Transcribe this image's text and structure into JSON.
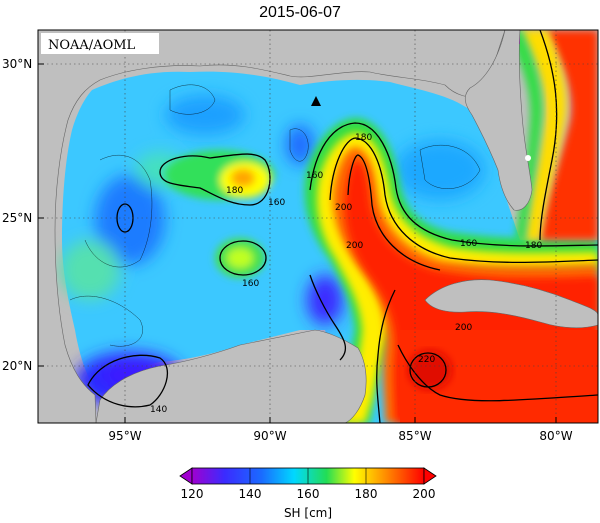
{
  "title": "2015-06-07",
  "credit": "NOAA/AOML",
  "colorbar": {
    "label": "SH [cm]",
    "ticks": [
      "120",
      "140",
      "160",
      "180",
      "200"
    ],
    "colors": [
      "#b000d0",
      "#1a1aff",
      "#00e5ff",
      "#33dd33",
      "#ffff00",
      "#ff8800",
      "#ff0000"
    ]
  },
  "axes": {
    "lat_ticks": [
      "30°N",
      "25°N",
      "20°N"
    ],
    "lon_ticks": [
      "95°W",
      "90°W",
      "85°W",
      "80°W"
    ]
  },
  "contour_labels": [
    "180",
    "160",
    "160",
    "180",
    "200",
    "160",
    "160",
    "180",
    "200",
    "200",
    "220",
    "140"
  ],
  "marker": "triangle",
  "colors": {
    "land": "#bfbfbf",
    "frame": "#000000"
  }
}
